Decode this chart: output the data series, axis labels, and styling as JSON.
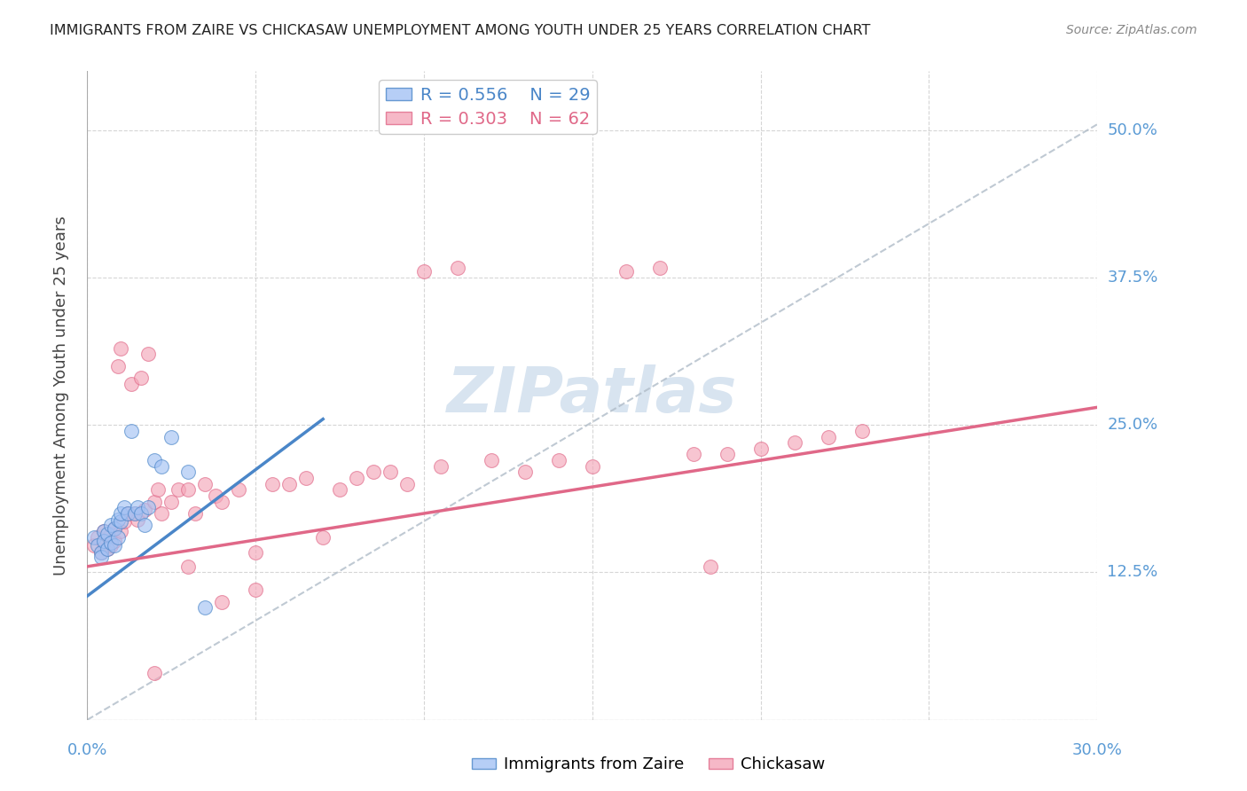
{
  "title": "IMMIGRANTS FROM ZAIRE VS CHICKASAW UNEMPLOYMENT AMONG YOUTH UNDER 25 YEARS CORRELATION CHART",
  "source": "Source: ZipAtlas.com",
  "ylabel": "Unemployment Among Youth under 25 years",
  "xlim": [
    0.0,
    0.3
  ],
  "ylim": [
    0.0,
    0.55
  ],
  "x_ticks": [
    0.0,
    0.05,
    0.1,
    0.15,
    0.2,
    0.25,
    0.3
  ],
  "y_ticks": [
    0.0,
    0.125,
    0.25,
    0.375,
    0.5
  ],
  "legend_r1": "R = 0.556",
  "legend_n1": "N = 29",
  "legend_r2": "R = 0.303",
  "legend_n2": "N = 62",
  "blue_color": "#a4c2f4",
  "pink_color": "#f4a7b9",
  "blue_line_color": "#4a86c8",
  "pink_line_color": "#e06888",
  "ref_line_color": "#b0bcc8",
  "title_color": "#222222",
  "axis_label_color": "#444444",
  "right_tick_color": "#5b9bd5",
  "bottom_tick_color": "#5b9bd5",
  "watermark_color": "#d8e4f0",
  "blue_scatter_x": [
    0.002,
    0.003,
    0.004,
    0.004,
    0.005,
    0.005,
    0.006,
    0.006,
    0.007,
    0.007,
    0.008,
    0.008,
    0.009,
    0.009,
    0.01,
    0.01,
    0.011,
    0.012,
    0.013,
    0.014,
    0.015,
    0.016,
    0.017,
    0.018,
    0.02,
    0.022,
    0.025,
    0.03,
    0.035
  ],
  "blue_scatter_y": [
    0.155,
    0.148,
    0.142,
    0.138,
    0.16,
    0.152,
    0.145,
    0.158,
    0.15,
    0.165,
    0.148,
    0.162,
    0.155,
    0.17,
    0.168,
    0.175,
    0.18,
    0.175,
    0.245,
    0.175,
    0.18,
    0.175,
    0.165,
    0.18,
    0.22,
    0.215,
    0.24,
    0.21,
    0.095
  ],
  "pink_scatter_x": [
    0.002,
    0.003,
    0.004,
    0.005,
    0.005,
    0.006,
    0.007,
    0.007,
    0.008,
    0.008,
    0.009,
    0.01,
    0.01,
    0.011,
    0.012,
    0.013,
    0.014,
    0.015,
    0.016,
    0.017,
    0.018,
    0.02,
    0.021,
    0.022,
    0.025,
    0.027,
    0.03,
    0.032,
    0.035,
    0.038,
    0.04,
    0.045,
    0.05,
    0.055,
    0.06,
    0.065,
    0.07,
    0.075,
    0.08,
    0.085,
    0.09,
    0.095,
    0.1,
    0.105,
    0.11,
    0.12,
    0.13,
    0.14,
    0.15,
    0.16,
    0.17,
    0.18,
    0.185,
    0.19,
    0.2,
    0.21,
    0.22,
    0.23,
    0.02,
    0.03,
    0.04,
    0.05
  ],
  "pink_scatter_y": [
    0.148,
    0.155,
    0.142,
    0.15,
    0.16,
    0.145,
    0.148,
    0.158,
    0.152,
    0.162,
    0.3,
    0.16,
    0.315,
    0.168,
    0.175,
    0.285,
    0.175,
    0.17,
    0.29,
    0.178,
    0.31,
    0.185,
    0.195,
    0.175,
    0.185,
    0.195,
    0.195,
    0.175,
    0.2,
    0.19,
    0.185,
    0.195,
    0.142,
    0.2,
    0.2,
    0.205,
    0.155,
    0.195,
    0.205,
    0.21,
    0.21,
    0.2,
    0.38,
    0.215,
    0.383,
    0.22,
    0.21,
    0.22,
    0.215,
    0.38,
    0.383,
    0.225,
    0.13,
    0.225,
    0.23,
    0.235,
    0.24,
    0.245,
    0.04,
    0.13,
    0.1,
    0.11
  ],
  "blue_line_x": [
    0.0,
    0.07
  ],
  "blue_line_y": [
    0.105,
    0.255
  ],
  "pink_line_x": [
    0.0,
    0.3
  ],
  "pink_line_y": [
    0.13,
    0.265
  ],
  "ref_line_x": [
    0.0,
    0.3
  ],
  "ref_line_y": [
    0.0,
    0.505
  ],
  "background_color": "#ffffff"
}
